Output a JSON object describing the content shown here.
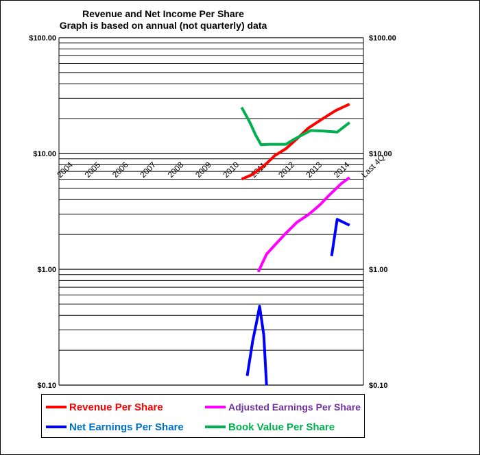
{
  "title": "Revenue and Net Income Per Share",
  "subtitle": "Graph is based on annual (not quarterly) data",
  "chart_data": {
    "type": "line",
    "title": "Revenue and Net Income Per Share",
    "subtitle": "Graph is based on annual (not quarterly) data",
    "yscale": "log",
    "ylim": [
      0.1,
      100
    ],
    "y_tick_labels": [
      "$100.00",
      "$10.00",
      "$1.00",
      "$0.10"
    ],
    "y_tick_values": [
      100,
      10,
      1,
      0.1
    ],
    "categories": [
      "2004",
      "2005",
      "2006",
      "2007",
      "2008",
      "2009",
      "2010",
      "2011",
      "2012",
      "2013",
      "2014",
      "Last 4Q"
    ],
    "grid": "horizontal",
    "legend_position": "bottom",
    "series": [
      {
        "name": "Revenue Per Share",
        "color": "#ff0000",
        "text_color": "#ff0000",
        "points": [
          [
            6.6,
            6.0
          ],
          [
            7.0,
            6.6
          ],
          [
            7.2,
            7.2
          ],
          [
            7.5,
            8.2
          ],
          [
            7.8,
            9.6
          ],
          [
            8.2,
            11.0
          ],
          [
            8.6,
            13.4
          ],
          [
            9.0,
            16.5
          ],
          [
            9.5,
            19.8
          ],
          [
            10.0,
            23.5
          ],
          [
            10.5,
            26.7
          ]
        ]
      },
      {
        "name": "Adjusted Earnings Per Share",
        "color": "#ff00ff",
        "text_color": "#7030a0",
        "points": [
          [
            7.2,
            0.95
          ],
          [
            7.5,
            1.35
          ],
          [
            7.8,
            1.62
          ],
          [
            8.2,
            2.05
          ],
          [
            8.6,
            2.55
          ],
          [
            9.0,
            2.95
          ],
          [
            9.4,
            3.55
          ],
          [
            9.8,
            4.45
          ],
          [
            10.2,
            5.5
          ],
          [
            10.5,
            6.2
          ]
        ]
      },
      {
        "name": "Net Earnings Per Share",
        "color": "#0000ff",
        "text_color": "#0070c0",
        "points": [
          [
            6.8,
            0.12
          ],
          [
            7.0,
            0.24
          ],
          [
            7.15,
            0.36
          ],
          [
            7.25,
            0.48
          ],
          [
            7.4,
            0.27
          ],
          [
            7.5,
            0.1
          ]
        ],
        "points2": [
          [
            9.85,
            1.3
          ],
          [
            10.05,
            2.7
          ],
          [
            10.5,
            2.4
          ]
        ]
      },
      {
        "name": "Book Value Per Share",
        "color": "#00b050",
        "text_color": "#00b050",
        "points": [
          [
            6.6,
            25.0
          ],
          [
            6.9,
            18.5
          ],
          [
            7.1,
            14.5
          ],
          [
            7.3,
            11.9
          ],
          [
            7.6,
            12.0
          ],
          [
            8.2,
            12.0
          ],
          [
            8.5,
            13.3
          ],
          [
            9.1,
            15.8
          ],
          [
            9.6,
            15.6
          ],
          [
            10.05,
            15.3
          ],
          [
            10.5,
            18.5
          ]
        ]
      }
    ]
  }
}
